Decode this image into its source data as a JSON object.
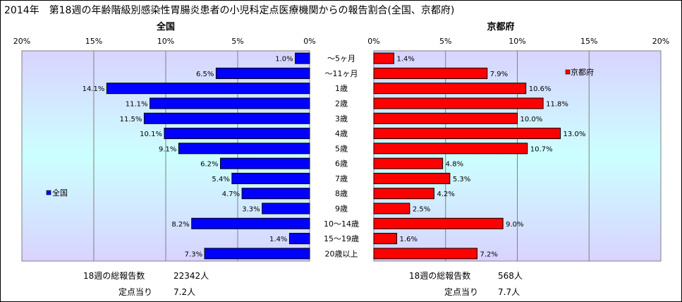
{
  "title": "2014年　第18週の年齢階級別感染性胃腸炎患者の小児科定点医療機関からの報告割合(全国、京都府)",
  "colors": {
    "national": "#0000ff",
    "kyoto": "#ff0000",
    "plot_top": "#d9d3ff",
    "plot_mid": "#ccffff"
  },
  "chart_data": [
    {
      "type": "bar",
      "orientation": "horizontal",
      "title": "全国",
      "series": [
        {
          "name": "全国",
          "values": [
            1.0,
            6.5,
            14.1,
            11.1,
            11.5,
            10.1,
            9.1,
            6.2,
            5.4,
            4.7,
            3.3,
            8.2,
            1.4,
            7.3
          ]
        }
      ],
      "data_labels": [
        "1.0%",
        "6.5%",
        "14.1%",
        "11.1%",
        "11.5%",
        "10.1%",
        "9.1%",
        "6.2%",
        "5.4%",
        "4.7%",
        "3.3%",
        "8.2%",
        "1.4%",
        "7.3%"
      ],
      "categories": [
        "～5ヶ月",
        "～11ヶ月",
        "1歳",
        "2歳",
        "3歳",
        "4歳",
        "5歳",
        "6歳",
        "7歳",
        "8歳",
        "9歳",
        "10～14歳",
        "15～19歳",
        "20歳以上"
      ],
      "xlim": [
        0,
        20
      ],
      "x_reversed": true,
      "ticks": [
        "20%",
        "15%",
        "10%",
        "5%",
        "0%"
      ],
      "grid": true,
      "legend": "left",
      "legend_label": "全国"
    },
    {
      "type": "bar",
      "orientation": "horizontal",
      "title": "京都府",
      "series": [
        {
          "name": "京都府",
          "values": [
            1.4,
            7.9,
            10.6,
            11.8,
            10.0,
            13.0,
            10.7,
            4.8,
            5.3,
            4.2,
            2.5,
            9.0,
            1.6,
            7.2
          ]
        }
      ],
      "data_labels": [
        "1.4%",
        "7.9%",
        "10.6%",
        "11.8%",
        "10.0%",
        "13.0%",
        "10.7%",
        "4.8%",
        "5.3%",
        "4.2%",
        "2.5%",
        "9.0%",
        "1.6%",
        "7.2%"
      ],
      "categories": [
        "～5ヶ月",
        "～11ヶ月",
        "1歳",
        "2歳",
        "3歳",
        "4歳",
        "5歳",
        "6歳",
        "7歳",
        "8歳",
        "9歳",
        "10～14歳",
        "15～19歳",
        "20歳以上"
      ],
      "xlim": [
        0,
        20
      ],
      "ticks": [
        "0%",
        "5%",
        "10%",
        "15%",
        "20%"
      ],
      "grid": true,
      "legend": "top-right",
      "legend_label": "京都府"
    }
  ],
  "footer": {
    "national_total_label": "18週の総報告数",
    "national_total_value": "22342人",
    "national_per_label": "定点当り",
    "national_per_value": "7.2人",
    "kyoto_total_label": "18週の総報告数",
    "kyoto_total_value": "568人",
    "kyoto_per_label": "定点当り",
    "kyoto_per_value": "7.7人"
  }
}
